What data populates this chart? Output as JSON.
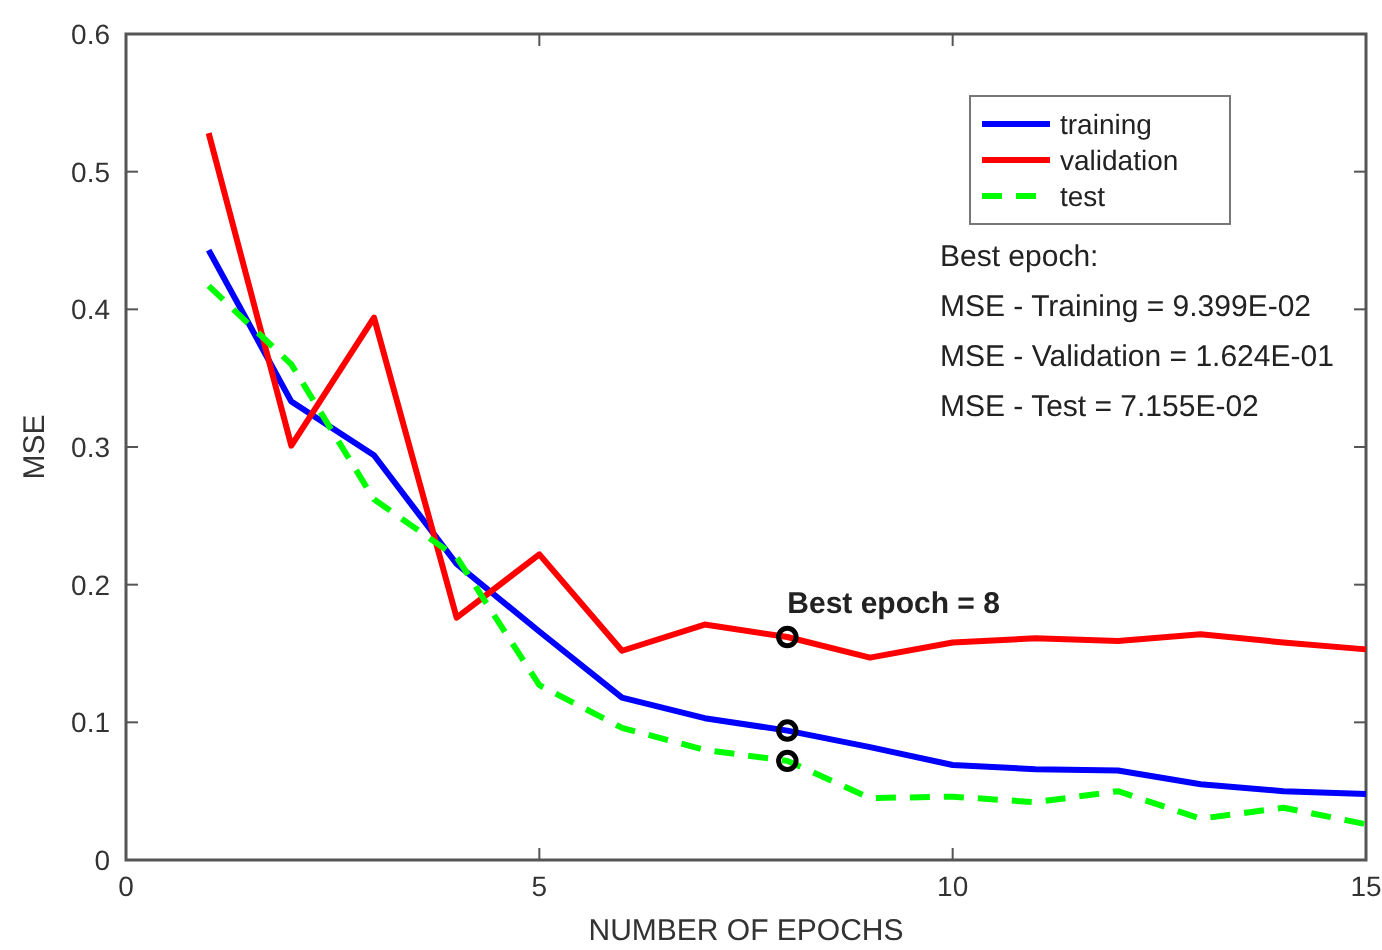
{
  "chart_data": {
    "type": "line",
    "xlabel": "NUMBER OF EPOCHS",
    "ylabel": "MSE",
    "xlim": [
      0,
      15
    ],
    "ylim": [
      0,
      0.6
    ],
    "xticks": [
      0,
      5,
      10,
      15
    ],
    "yticks": [
      0,
      0.1,
      0.2,
      0.3,
      0.4,
      0.5,
      0.6
    ],
    "grid": false,
    "legend": "top right",
    "marker": "none",
    "x": [
      1,
      2,
      3,
      4,
      5,
      6,
      7,
      8,
      9,
      10,
      11,
      12,
      13,
      14,
      15
    ],
    "series": [
      {
        "name": "training",
        "color": "#0000ff",
        "line_style": "solid",
        "values": [
          0.443,
          0.333,
          0.294,
          0.215,
          0.166,
          0.118,
          0.103,
          0.094,
          0.082,
          0.069,
          0.066,
          0.065,
          0.055,
          0.05,
          0.048
        ]
      },
      {
        "name": "validation",
        "color": "#ff0000",
        "line_style": "solid",
        "values": [
          0.528,
          0.301,
          0.394,
          0.176,
          0.222,
          0.152,
          0.171,
          0.162,
          0.147,
          0.158,
          0.161,
          0.159,
          0.164,
          0.158,
          0.153
        ]
      },
      {
        "name": "test",
        "color": "#00ff00",
        "line_style": "dashed",
        "values": [
          0.417,
          0.36,
          0.262,
          0.22,
          0.127,
          0.096,
          0.08,
          0.072,
          0.045,
          0.046,
          0.042,
          0.05,
          0.03,
          0.038,
          0.026
        ]
      },
      {
        "type": "scatter",
        "color": "#000000",
        "marker": "circle",
        "values": [
          null,
          null,
          null,
          null,
          null,
          null,
          null,
          0.094,
          null,
          null,
          null,
          null,
          null,
          null,
          null
        ]
      },
      {
        "type": "scatter",
        "color": "#000000",
        "marker": "circle",
        "values": [
          null,
          null,
          null,
          null,
          null,
          null,
          null,
          0.162,
          null,
          null,
          null,
          null,
          null,
          null,
          null
        ]
      },
      {
        "type": "scatter",
        "color": "#000000",
        "marker": "circle",
        "values": [
          null,
          null,
          null,
          null,
          null,
          null,
          null,
          0.072,
          null,
          null,
          null,
          null,
          null,
          null,
          null
        ]
      }
    ],
    "annotations": [
      {
        "text": "Best epoch = 8",
        "x": 8,
        "y": 0.162
      },
      "Best epoch:",
      "MSE - Training = 9.399E-02",
      "MSE - Validation = 1.624E-01",
      "MSE - Test = 7.155E-02"
    ]
  }
}
